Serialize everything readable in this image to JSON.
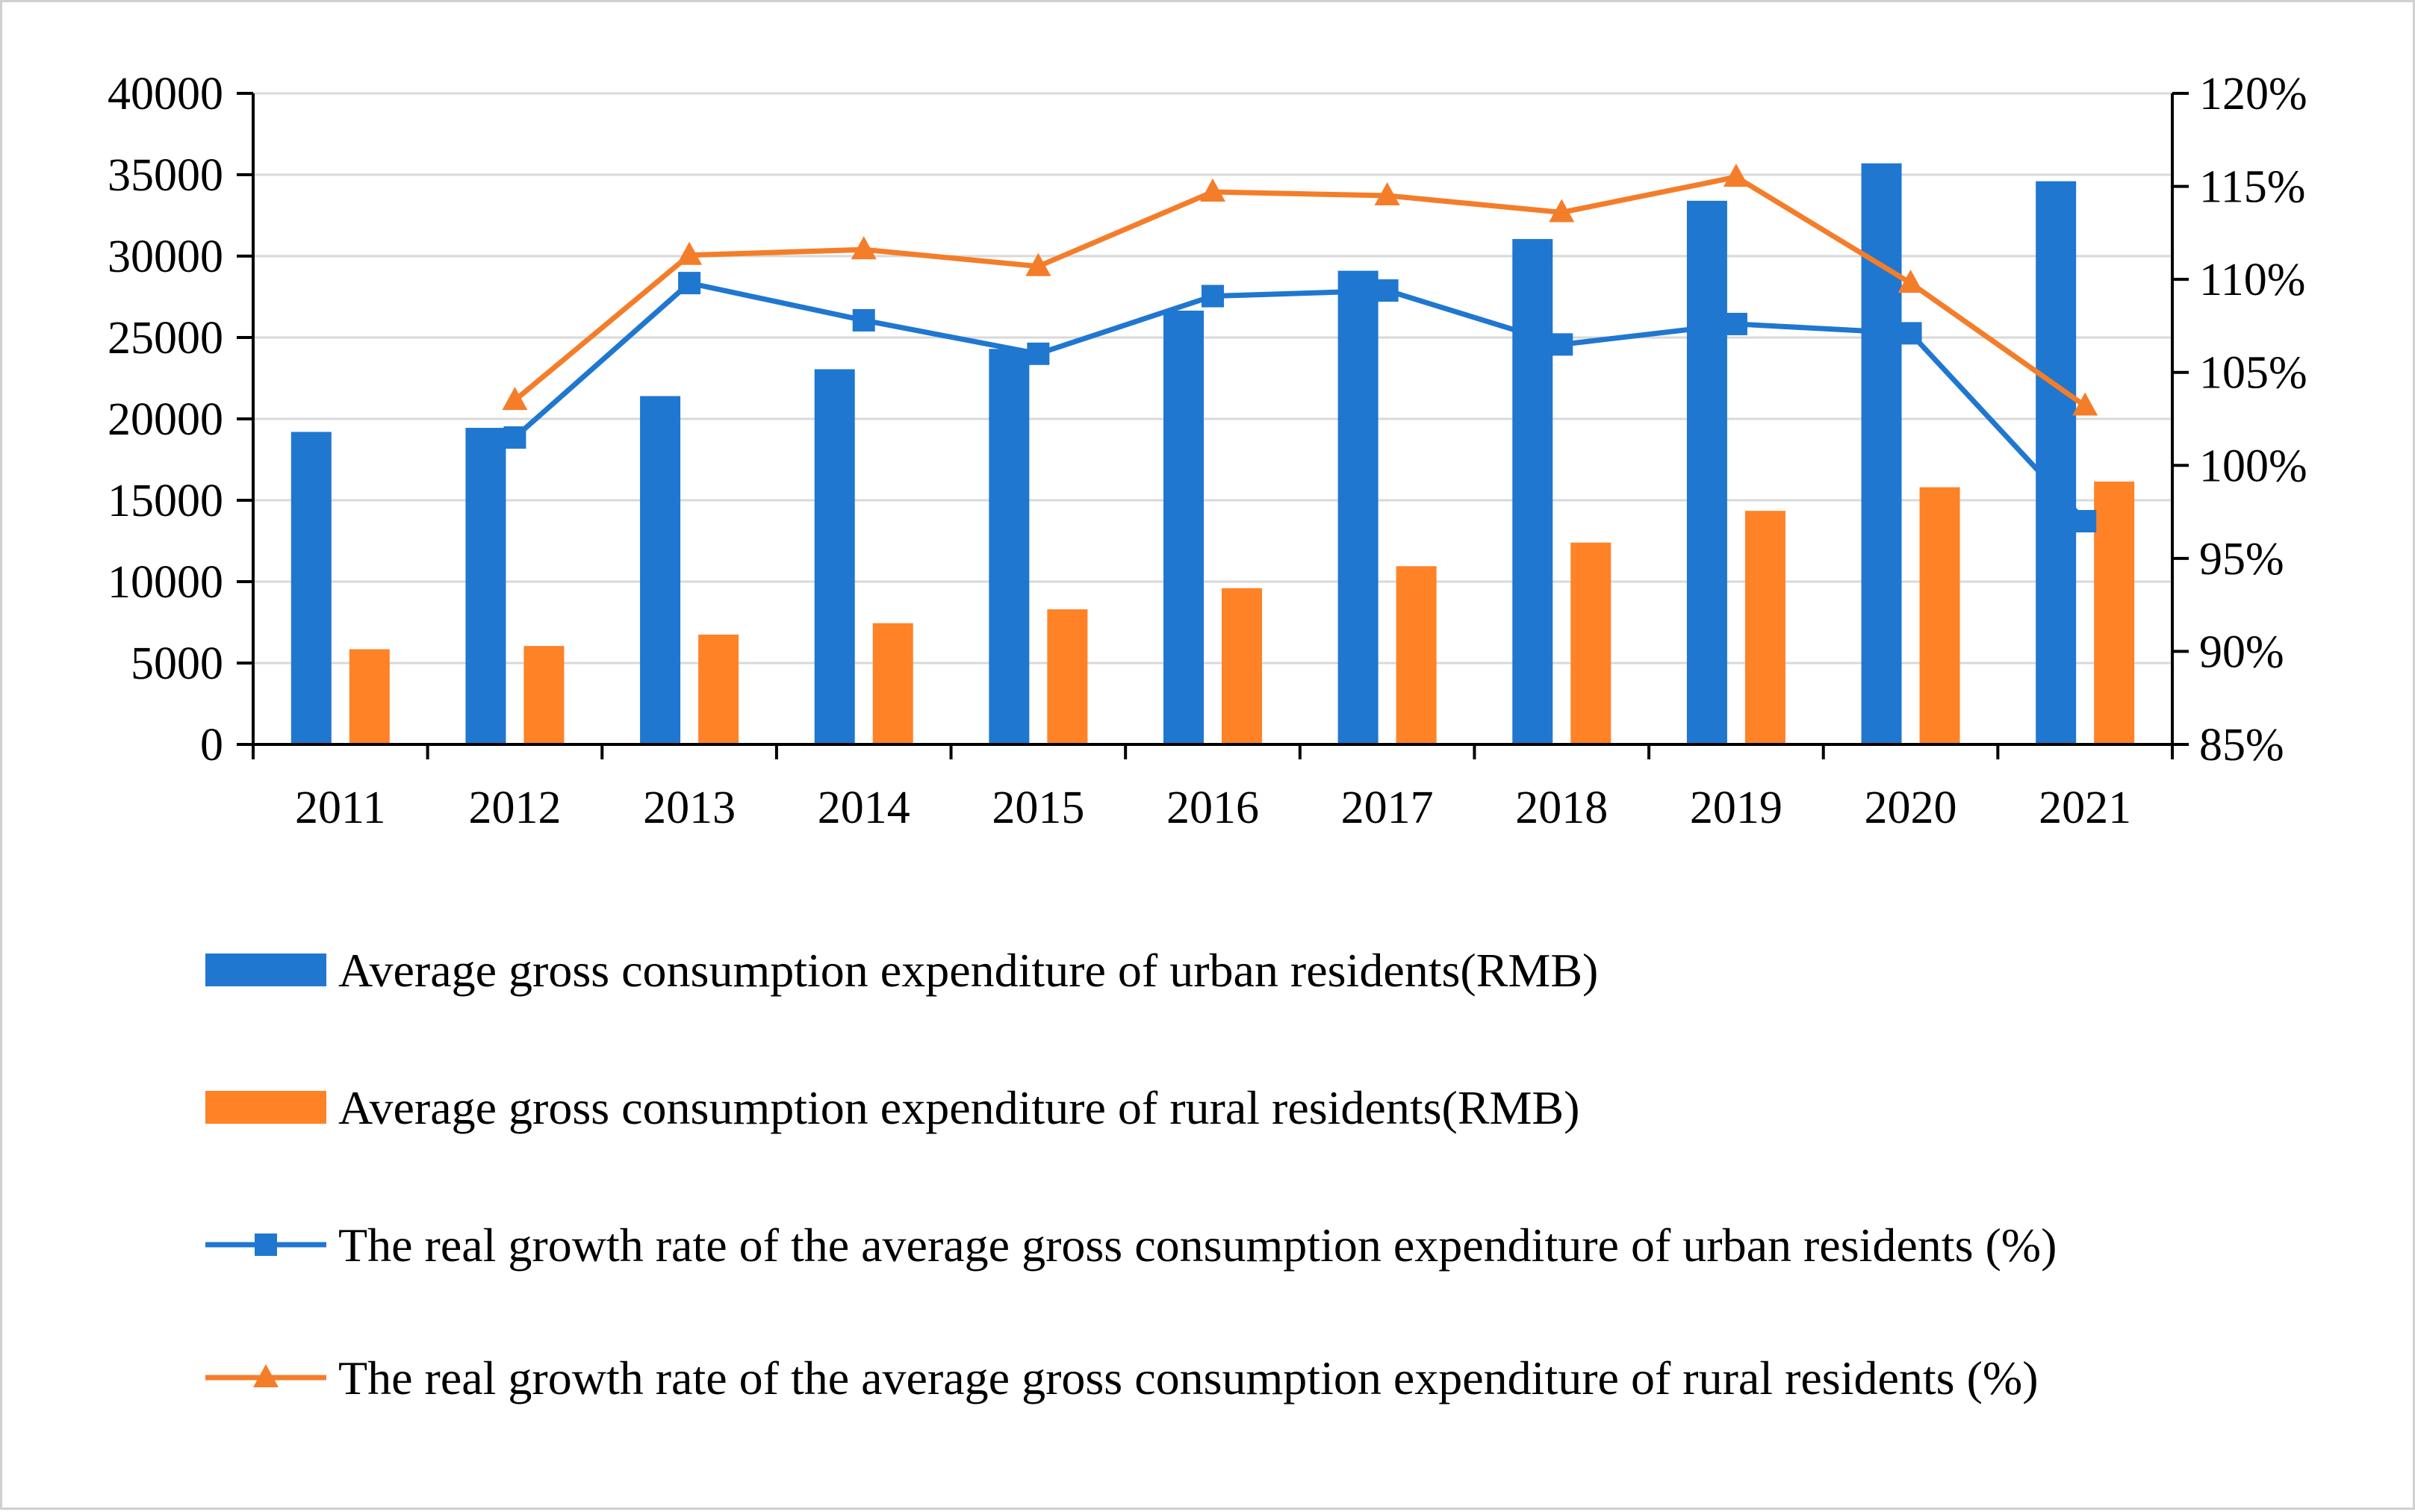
{
  "chart_data": {
    "type": "bar+line",
    "categories": [
      "2011",
      "2012",
      "2013",
      "2014",
      "2015",
      "2016",
      "2017",
      "2018",
      "2019",
      "2020",
      "2021"
    ],
    "left_axis": {
      "ylim": [
        0,
        40000
      ],
      "ticks": [
        "0",
        "5000",
        "10000",
        "15000",
        "20000",
        "25000",
        "30000",
        "35000",
        "40000"
      ]
    },
    "right_axis": {
      "ylim": [
        85,
        120
      ],
      "ticks": [
        "85%",
        "90%",
        "95%",
        "100%",
        "105%",
        "110%",
        "115%",
        "120%"
      ]
    },
    "grid": true,
    "legend_position": "bottom",
    "series": [
      {
        "name": "Average gross consumption expenditure of urban residents(RMB)",
        "kind": "bar",
        "axis": "left",
        "color": "#1f77d0",
        "values": [
          19200,
          19450,
          21400,
          23050,
          24300,
          26650,
          29100,
          31050,
          33400,
          35700,
          34600
        ]
      },
      {
        "name": "Average gross consumption expenditure of rural residents(RMB)",
        "kind": "bar",
        "axis": "left",
        "color": "#ff8227",
        "values": [
          5850,
          6050,
          6750,
          7450,
          8300,
          9600,
          10950,
          12400,
          14350,
          15800,
          16150
        ]
      },
      {
        "name": "The real growth rate of the average gross consumption expenditure of urban residents (%)",
        "kind": "line",
        "marker": "square",
        "axis": "right",
        "color": "#1f77d0",
        "values": [
          null,
          101.5,
          109.8,
          107.8,
          106.0,
          109.1,
          109.4,
          106.5,
          107.6,
          107.1,
          97.0
        ]
      },
      {
        "name": "The real growth rate of the average gross consumption expenditure of rural residents (%)",
        "kind": "line",
        "marker": "triangle",
        "axis": "right",
        "color": "#f47d2a",
        "values": [
          null,
          103.5,
          111.3,
          111.6,
          110.7,
          114.7,
          114.5,
          113.6,
          115.5,
          109.8,
          103.2
        ]
      }
    ]
  }
}
